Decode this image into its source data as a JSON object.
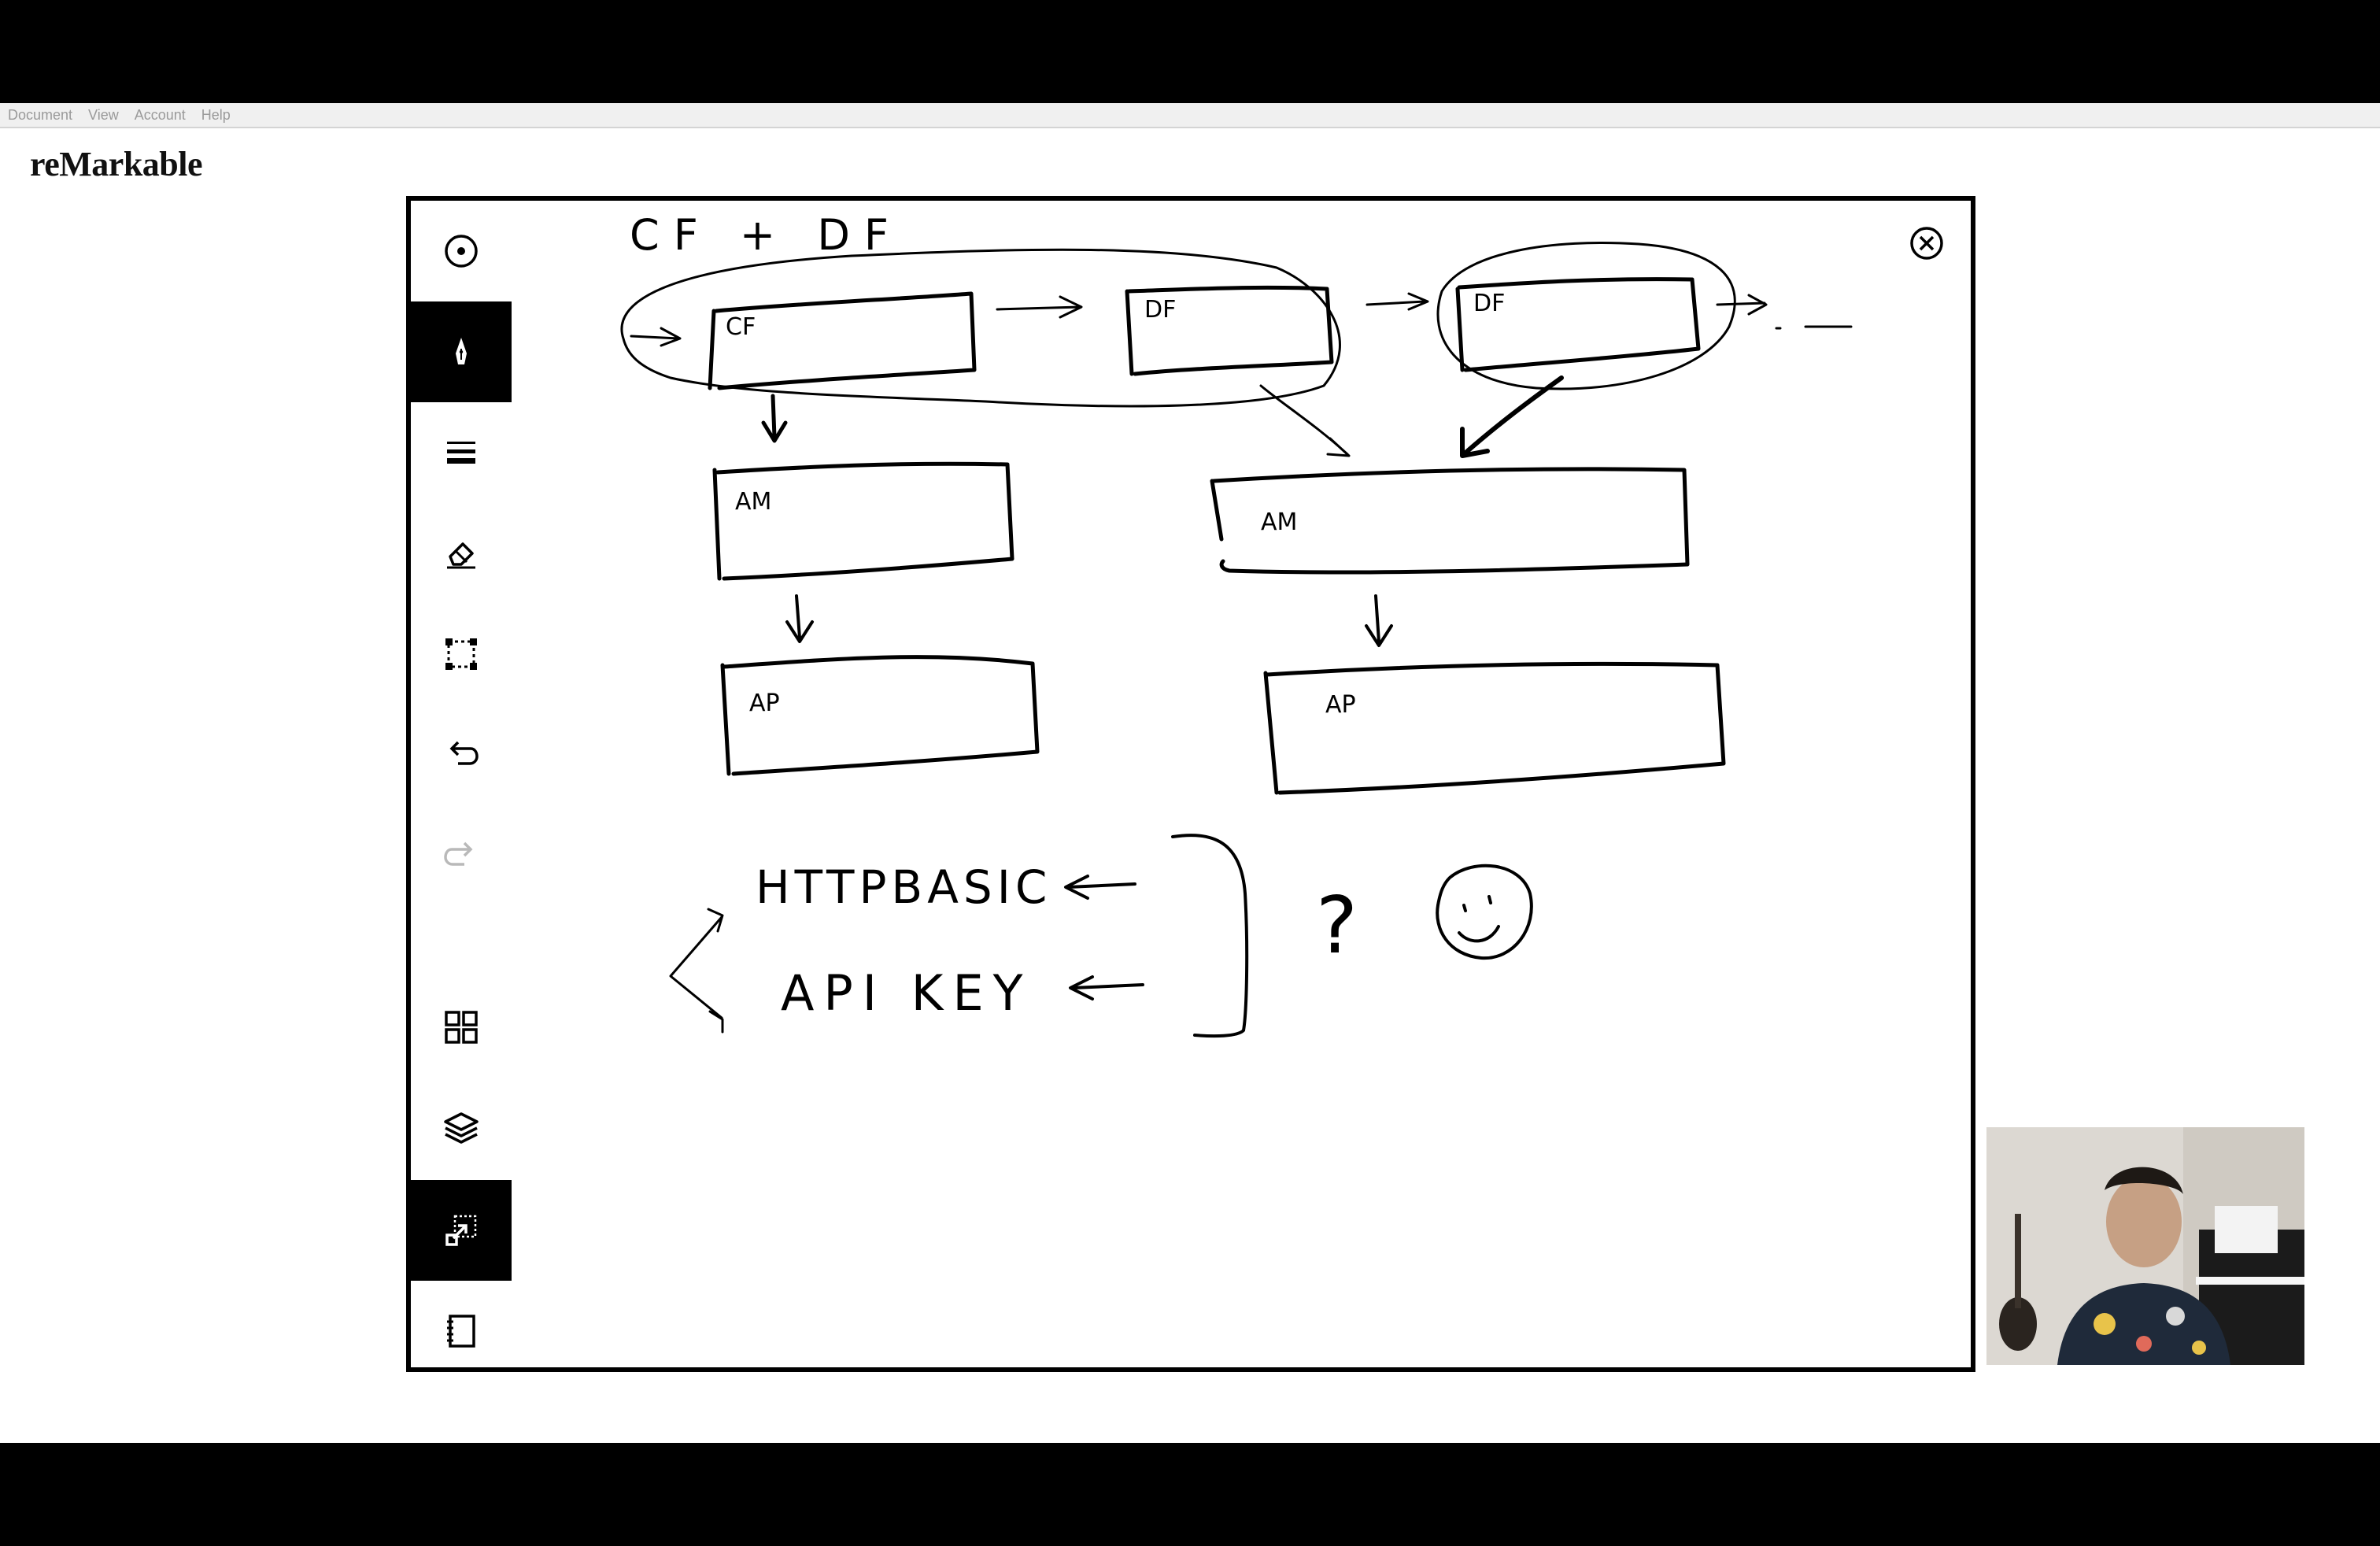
{
  "menu": [
    "Document",
    "View",
    "Account",
    "Help"
  ],
  "brand": "reMarkable",
  "toolbar": {
    "icons": [
      "target-icon",
      "pen-icon",
      "lines-icon",
      "eraser-icon",
      "selection-icon",
      "undo-icon",
      "redo-icon",
      "grid-icon",
      "layers-icon",
      "share-icon",
      "notebook-icon"
    ],
    "active_tools": [
      "pen-icon",
      "share-icon"
    ]
  },
  "drawing": {
    "title": "CF + DF",
    "boxes": [
      "CF",
      "DF",
      "DF",
      "AM",
      "AM",
      "AP",
      "AP"
    ],
    "auth_options": [
      "HTTPBASIC",
      "API KEY"
    ],
    "question_mark": "?",
    "continuation": "..."
  },
  "colors": {
    "ink": "#000000",
    "canvas": "#ffffff",
    "menubar": "#f0f0f0",
    "menu_text": "#9a9a9a"
  }
}
